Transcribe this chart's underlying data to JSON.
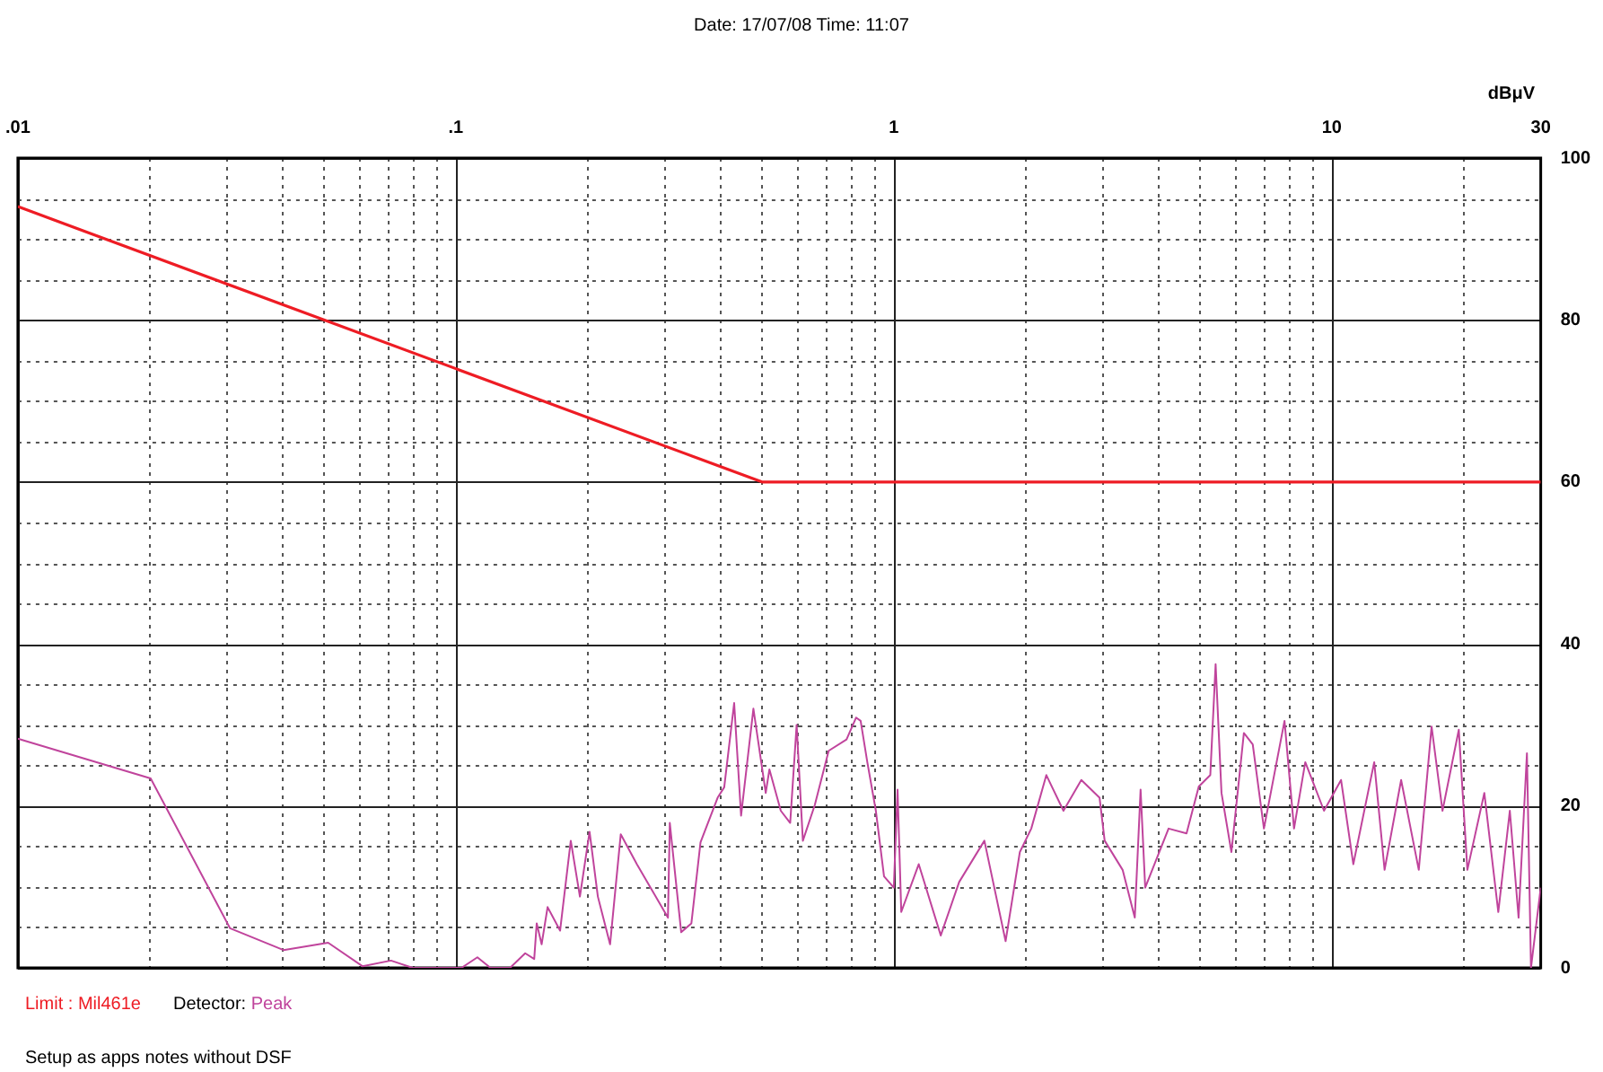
{
  "chart_data": {
    "type": "line",
    "title": "Date: 17/07/08    Time: 11:07",
    "ylabel": "dBμV",
    "annotations": [
      "Limit :",
      "Detector:",
      "Setup as apps notes without DSF"
    ],
    "log": "x",
    "grid": true,
    "legend": "bottom",
    "marker": "none",
    "line_style": "solid",
    "xlim": [
      0.01,
      30
    ],
    "xticks": [
      {
        "value": 0.01,
        "label": ".01"
      },
      {
        "value": 0.02,
        "label": null
      },
      {
        "value": 0.03,
        "label": null
      },
      {
        "value": 0.04,
        "label": null
      },
      {
        "value": 0.05,
        "label": null
      },
      {
        "value": 0.06,
        "label": null
      },
      {
        "value": 0.07,
        "label": null
      },
      {
        "value": 0.08,
        "label": null
      },
      {
        "value": 0.09,
        "label": null
      },
      {
        "value": 0.1,
        "label": ".1"
      },
      {
        "value": 0.2,
        "label": null
      },
      {
        "value": 0.3,
        "label": null
      },
      {
        "value": 0.4,
        "label": null
      },
      {
        "value": 0.5,
        "label": null
      },
      {
        "value": 0.6,
        "label": null
      },
      {
        "value": 0.7,
        "label": null
      },
      {
        "value": 0.8,
        "label": null
      },
      {
        "value": 0.9,
        "label": null
      },
      1,
      {
        "value": 2,
        "label": null
      },
      {
        "value": 3,
        "label": null
      },
      {
        "value": 4,
        "label": null
      },
      {
        "value": 5,
        "label": null
      },
      {
        "value": 6,
        "label": null
      },
      {
        "value": 7,
        "label": null
      },
      {
        "value": 8,
        "label": null
      },
      {
        "value": 9,
        "label": null
      },
      10,
      {
        "value": 20,
        "label": null
      },
      30
    ],
    "ylim": [
      0,
      100
    ],
    "yticks": [
      0,
      {
        "value": 5,
        "label": null
      },
      {
        "value": 10,
        "label": null
      },
      {
        "value": 15,
        "label": null
      },
      20,
      {
        "value": 25,
        "label": null
      },
      {
        "value": 30,
        "label": null
      },
      {
        "value": 35,
        "label": null
      },
      40,
      {
        "value": 45,
        "label": null
      },
      {
        "value": 50,
        "label": null
      },
      {
        "value": 55,
        "label": null
      },
      60,
      {
        "value": 65,
        "label": null
      },
      {
        "value": 70,
        "label": null
      },
      {
        "value": 75,
        "label": null
      },
      80,
      {
        "value": 85,
        "label": null
      },
      {
        "value": 90,
        "label": null
      },
      {
        "value": 95,
        "label": null
      },
      100
    ],
    "series": [
      {
        "name": "Mil461e",
        "color": "#ee1c24",
        "x": [
          0.01,
          0.5,
          30
        ],
        "values": [
          94,
          60,
          60
        ]
      },
      {
        "name": "Peak",
        "color": "#c0449c",
        "x": [
          0.01,
          0.0201,
          0.0305,
          0.0404,
          0.0511,
          0.0612,
          0.0711,
          0.0797,
          0.103,
          0.112,
          0.12,
          0.133,
          0.144,
          0.151,
          0.153,
          0.157,
          0.162,
          0.173,
          0.183,
          0.192,
          0.202,
          0.211,
          0.225,
          0.238,
          0.259,
          0.284,
          0.305,
          0.308,
          0.327,
          0.345,
          0.362,
          0.396,
          0.41,
          0.432,
          0.448,
          0.478,
          0.51,
          0.52,
          0.552,
          0.58,
          0.6,
          0.62,
          0.66,
          0.71,
          0.78,
          0.82,
          0.84,
          0.87,
          0.91,
          0.95,
          1.0,
          1.02,
          1.04,
          1.14,
          1.28,
          1.41,
          1.61,
          1.8,
          1.94,
          2.06,
          2.23,
          2.44,
          2.68,
          2.95,
          3.03,
          3.33,
          3.55,
          3.66,
          3.75,
          4.24,
          4.66,
          4.97,
          5.28,
          5.43,
          5.6,
          5.9,
          6.3,
          6.6,
          7.0,
          7.8,
          8.2,
          8.7,
          9.6,
          10.5,
          11.2,
          12.5,
          13.2,
          14.4,
          15.8,
          16.9,
          17.9,
          19.5,
          20.4,
          22.3,
          24.0,
          25.5,
          26.7,
          27.9,
          28.5,
          30
        ],
        "values": [
          28.3,
          23.4,
          4.9,
          2.2,
          3.1,
          0.2,
          0.9,
          0,
          0,
          1.3,
          0,
          0,
          1.8,
          1.1,
          5.5,
          2.9,
          7.5,
          4.6,
          15.7,
          8.8,
          16.8,
          8.8,
          2.9,
          16.5,
          12.8,
          9.1,
          6.2,
          17.9,
          4.4,
          5.5,
          15.5,
          21,
          22.3,
          32.7,
          18.8,
          32,
          21.6,
          24.5,
          19.4,
          17.9,
          30,
          15.7,
          20.1,
          26.8,
          28.2,
          30.9,
          30.5,
          25.4,
          19.4,
          11.3,
          9.9,
          22,
          6.9,
          12.8,
          4,
          10.6,
          15.7,
          3.3,
          14.3,
          17.2,
          23.8,
          19.4,
          23.2,
          21,
          15.7,
          12.1,
          6.2,
          22,
          9.9,
          17.2,
          16.6,
          22.4,
          23.8,
          37.5,
          21.6,
          14.3,
          29,
          27.6,
          17.2,
          30.5,
          17.2,
          25.4,
          19.4,
          23.2,
          12.8,
          25.4,
          12.1,
          23.2,
          12.1,
          29.8,
          19.4,
          29.4,
          12.1,
          21.6,
          6.9,
          19.4,
          6.2,
          26.5,
          0,
          9.9
        ]
      }
    ]
  }
}
